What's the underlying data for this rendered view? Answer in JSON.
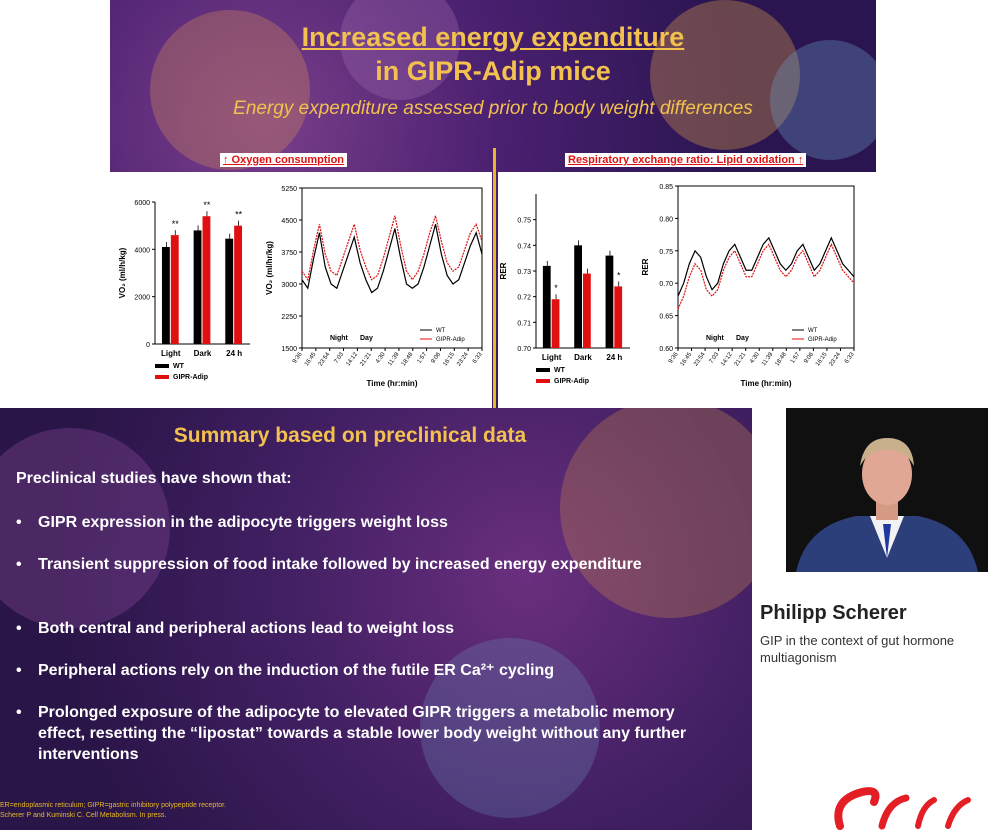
{
  "top_slide": {
    "title_line1": "Increased energy expenditure",
    "title_line2": "in GIPR-Adip mice",
    "subtitle": "Energy expenditure assessed prior to body weight differences",
    "left_panel_label": "↑ Oxygen consumption",
    "right_panel_label": "Respiratory exchange ratio: Lipid oxidation ↑"
  },
  "chart_data": [
    {
      "type": "bar",
      "ylabel": "VO₂ (ml/h/kg)",
      "categories": [
        "Light",
        "Dark",
        "24 h"
      ],
      "ylim": [
        0,
        6000
      ],
      "yticks": [
        0,
        2000,
        4000,
        6000
      ],
      "series": [
        {
          "name": "WT",
          "color": "#000000",
          "values": [
            4100,
            4800,
            4450
          ]
        },
        {
          "name": "GIPR-Adip",
          "color": "#e01010",
          "values": [
            4600,
            5400,
            5000
          ]
        }
      ],
      "annotations": [
        "**",
        "**",
        "**"
      ]
    },
    {
      "type": "line",
      "ylabel": "VO₂ (ml/hr/kg)",
      "xlabel": "Time (hr:min)",
      "ylim": [
        1500,
        5250
      ],
      "yticks": [
        1500,
        2250,
        3000,
        3750,
        4500,
        5250
      ],
      "xticks": [
        "9:36",
        "16:45",
        "23:54",
        "7:03",
        "14:12",
        "21:21",
        "4:30",
        "11:39",
        "18:48",
        "1:57",
        "9:06",
        "16:15",
        "23:24",
        "6:33"
      ],
      "annotation_night": "Night",
      "annotation_day": "Day",
      "series": [
        {
          "name": "WT",
          "color": "#000000",
          "values": [
            3100,
            2900,
            3600,
            4200,
            3400,
            3000,
            2900,
            3300,
            3700,
            4100,
            3500,
            3100,
            2800,
            2900,
            3300,
            3800,
            4300,
            3600,
            3000,
            2900,
            3000,
            3400,
            3900,
            4400,
            3700,
            3200,
            3000,
            3100,
            3500,
            3900,
            4200,
            3700
          ]
        },
        {
          "name": "GIPR-Adip",
          "color": "#e01010",
          "values": [
            3300,
            3100,
            3800,
            4400,
            3700,
            3300,
            3200,
            3600,
            4000,
            4400,
            3800,
            3400,
            3100,
            3200,
            3600,
            4100,
            4600,
            3900,
            3300,
            3100,
            3300,
            3700,
            4200,
            4600,
            4000,
            3500,
            3300,
            3400,
            3800,
            4200,
            4400,
            4000
          ]
        }
      ]
    },
    {
      "type": "bar",
      "ylabel": "RER",
      "categories": [
        "Light",
        "Dark",
        "24 h"
      ],
      "ylim": [
        0.7,
        0.76
      ],
      "yticks": [
        0.7,
        0.71,
        0.72,
        0.73,
        0.74,
        0.75
      ],
      "series": [
        {
          "name": "WT",
          "color": "#000000",
          "values": [
            0.732,
            0.74,
            0.736
          ]
        },
        {
          "name": "GIPR-Adip",
          "color": "#e01010",
          "values": [
            0.719,
            0.729,
            0.724
          ]
        }
      ],
      "annotations": [
        "*",
        "",
        "*"
      ]
    },
    {
      "type": "line",
      "ylabel": "RER",
      "xlabel": "Time (hr:min)",
      "ylim": [
        0.6,
        0.85
      ],
      "yticks": [
        0.6,
        0.65,
        0.7,
        0.75,
        0.8,
        0.85
      ],
      "xticks": [
        "9:36",
        "16:45",
        "23:54",
        "7:03",
        "14:12",
        "21:21",
        "4:30",
        "11:39",
        "18:48",
        "1:57",
        "9:06",
        "16:15",
        "23:24",
        "6:33"
      ],
      "annotation_night": "Night",
      "annotation_day": "Day",
      "series": [
        {
          "name": "WT",
          "color": "#000000",
          "values": [
            0.68,
            0.7,
            0.73,
            0.75,
            0.74,
            0.71,
            0.69,
            0.7,
            0.73,
            0.75,
            0.76,
            0.74,
            0.72,
            0.72,
            0.74,
            0.76,
            0.77,
            0.75,
            0.73,
            0.72,
            0.73,
            0.75,
            0.76,
            0.74,
            0.72,
            0.73,
            0.75,
            0.77,
            0.75,
            0.73,
            0.72,
            0.71
          ]
        },
        {
          "name": "GIPR-Adip",
          "color": "#e01010",
          "values": [
            0.66,
            0.68,
            0.71,
            0.73,
            0.72,
            0.69,
            0.68,
            0.69,
            0.72,
            0.74,
            0.75,
            0.73,
            0.71,
            0.71,
            0.73,
            0.75,
            0.76,
            0.74,
            0.72,
            0.71,
            0.72,
            0.74,
            0.75,
            0.73,
            0.71,
            0.72,
            0.74,
            0.76,
            0.74,
            0.72,
            0.71,
            0.7
          ]
        }
      ]
    }
  ],
  "bottom_slide": {
    "title": "Summary based on preclinical data",
    "intro": "Preclinical studies have shown that:",
    "bullets": [
      "GIPR expression in the adipocyte triggers weight loss",
      "Transient suppression of food intake followed by increased energy expenditure",
      "Both central and peripheral actions lead to weight loss",
      "Peripheral actions rely on the induction of the futile ER Ca²⁺ cycling",
      "Prolonged exposure of the adipocyte to elevated GIPR triggers a metabolic memory effect, resetting the “lipostat” towards a stable lower body weight without any further interventions"
    ],
    "footnote1": "ER=endoplasmic reticulum; GIPR=gastric inhibitory polypeptide receptor.",
    "footnote2": "Scherer P and Kuminski C. Cell Metabolism. In press."
  },
  "speaker": {
    "name": "Philipp Scherer",
    "talk_title": "GIP in the context of gut hormone multiagonism"
  },
  "colors": {
    "accent_gold": "#f2c14e",
    "wt": "#000000",
    "gipr": "#e01010"
  }
}
